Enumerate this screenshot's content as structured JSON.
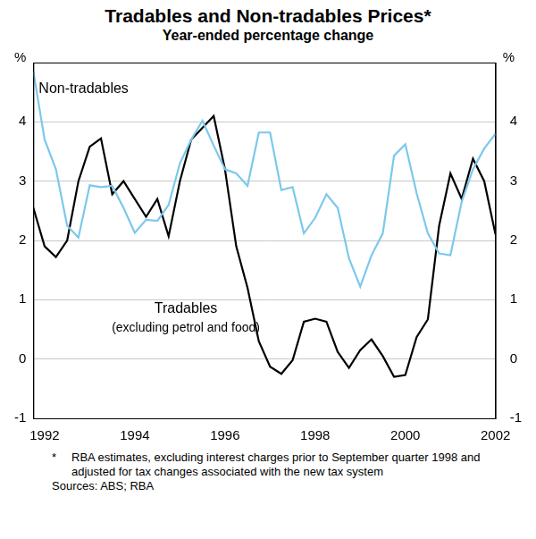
{
  "chart_data": {
    "type": "line",
    "title": "Tradables and Non-tradables Prices*",
    "subtitle": "Year-ended percentage change",
    "ylabel": "%",
    "y2label": "%",
    "categories": [
      null,
      "1992",
      null,
      null,
      null,
      null,
      null,
      null,
      null,
      "1994",
      null,
      null,
      null,
      null,
      null,
      null,
      null,
      "1996",
      null,
      null,
      null,
      null,
      null,
      null,
      null,
      "1998",
      null,
      null,
      null,
      null,
      null,
      null,
      null,
      "2000",
      null,
      null,
      null,
      null,
      null,
      null,
      null,
      "2002"
    ],
    "series": [
      {
        "name": "Non-tradables",
        "color": "#7cc8ec",
        "values": [
          4.85,
          3.7,
          3.2,
          2.25,
          2.05,
          2.93,
          2.9,
          2.92,
          2.55,
          2.13,
          2.35,
          2.33,
          2.6,
          3.3,
          3.7,
          4.02,
          3.6,
          3.2,
          3.13,
          2.92,
          3.82,
          3.82,
          2.85,
          2.9,
          2.12,
          2.38,
          2.78,
          2.55,
          1.7,
          1.22,
          1.75,
          2.12,
          3.43,
          3.62,
          2.8,
          2.12,
          1.78,
          1.75,
          2.65,
          3.2,
          3.55,
          3.8
        ]
      },
      {
        "name": "Tradables",
        "color": "#000000",
        "values": [
          2.55,
          1.9,
          1.72,
          2.0,
          3.0,
          3.58,
          3.72,
          2.78,
          3.0,
          2.7,
          2.4,
          2.7,
          2.07,
          3.0,
          3.7,
          3.9,
          4.1,
          3.2,
          1.9,
          1.2,
          0.3,
          -0.13,
          -0.25,
          -0.02,
          0.63,
          0.68,
          0.63,
          0.12,
          -0.15,
          0.15,
          0.33,
          0.05,
          -0.3,
          -0.27,
          0.37,
          0.67,
          2.25,
          3.13,
          2.7,
          3.38,
          3.0,
          2.1
        ]
      }
    ],
    "annotations": [
      "Non-tradables",
      "Tradables",
      "(excluding petrol and food)"
    ],
    "ylim": [
      -1,
      5
    ],
    "yticks": [
      -1,
      0,
      1,
      2,
      3,
      4
    ],
    "y2lim": [
      -1,
      5
    ],
    "y2ticks": [
      -1,
      0,
      1,
      2,
      3,
      4
    ],
    "grid": true,
    "notes": [
      "*",
      "RBA estimates, excluding interest charges prior to September quarter 1998 and adjusted for tax changes associated with the new tax system"
    ],
    "sources": "Sources: ABS; RBA"
  }
}
